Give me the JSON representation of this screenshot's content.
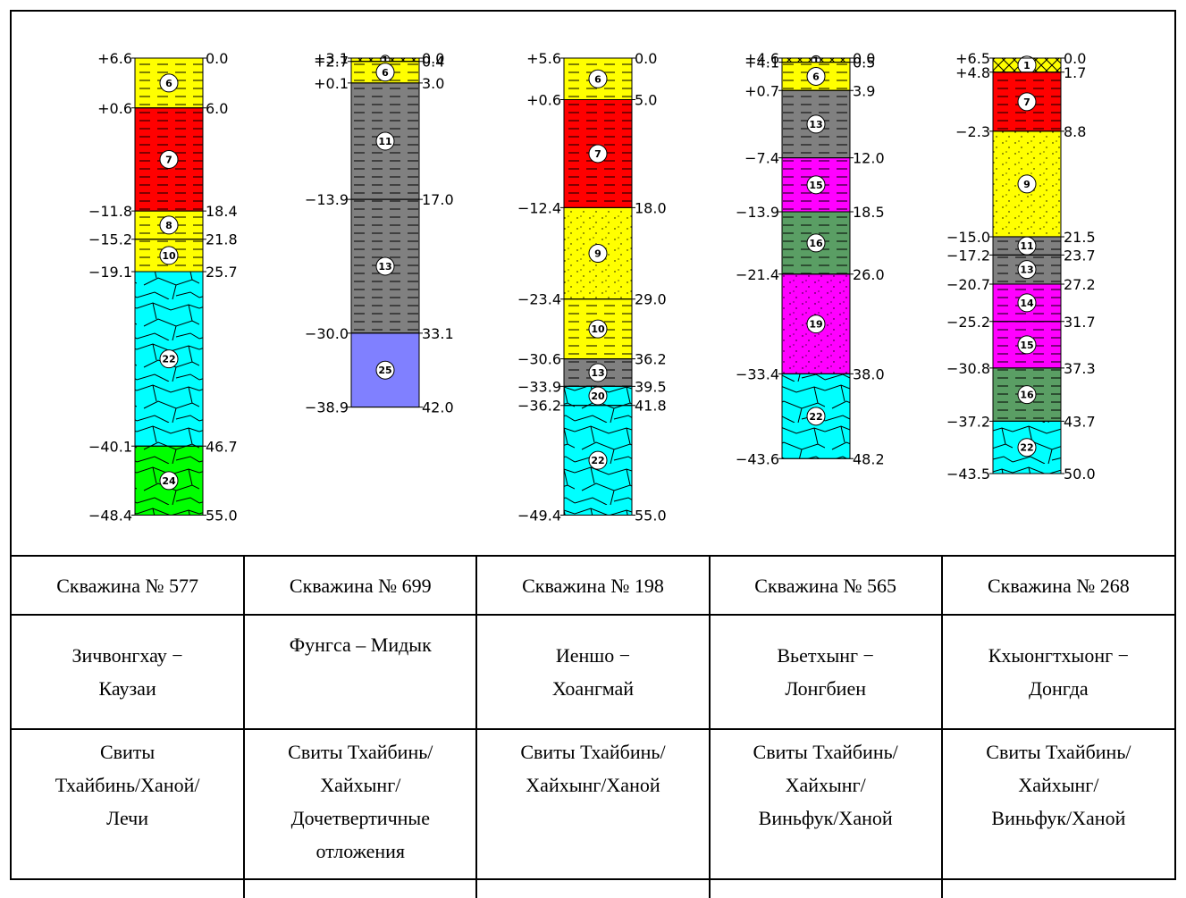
{
  "pattern_colors": {
    "1": "#ffff00",
    "6": "#ffff00",
    "7": "#ff0000",
    "8": "#ffff00",
    "9": "#ffff00",
    "10": "#ffff00",
    "11": "#808080",
    "13": "#808080",
    "14": "#ff00ff",
    "15": "#ff00ff",
    "16": "#5a9e64",
    "19": "#ff00ff",
    "20": "#00ffff",
    "22": "#00ffff",
    "24": "#00ff00",
    "25": "#8080ff"
  },
  "wells": [
    {
      "layers": [
        {
          "code": "6",
          "top": "0.0",
          "bottom": "6.0",
          "elev_top": "+6.6",
          "elev_bottom": "+0.6"
        },
        {
          "code": "7",
          "top": "6.0",
          "bottom": "18.4",
          "elev_top": "+0.6",
          "elev_bottom": "−11.8"
        },
        {
          "code": "8",
          "top": "18.4",
          "bottom": "21.8",
          "elev_top": "−11.8",
          "elev_bottom": "−15.2"
        },
        {
          "code": "10",
          "top": "21.8",
          "bottom": "25.7",
          "elev_top": "−15.2",
          "elev_bottom": "−19.1"
        },
        {
          "code": "22",
          "top": "25.7",
          "bottom": "46.7",
          "elev_top": "−19.1",
          "elev_bottom": "−40.1"
        },
        {
          "code": "24",
          "top": "46.7",
          "bottom": "55.0",
          "elev_top": "−40.1",
          "elev_bottom": "−48.4"
        }
      ],
      "labels": [
        {
          "d": "0.0",
          "e": "+6.6"
        },
        {
          "d": "6.0",
          "e": "+0.6"
        },
        {
          "d": "18.4",
          "e": "−11.8"
        },
        {
          "d": "21.8",
          "e": "−15.2"
        },
        {
          "d": "25.7",
          "e": "−19.1"
        },
        {
          "d": "46.7",
          "e": "−40.1"
        },
        {
          "d": "55.0",
          "e": "−48.4"
        }
      ]
    },
    {
      "layers": [
        {
          "code": "1",
          "top": "0.0",
          "bottom": "0.4"
        },
        {
          "code": "6",
          "top": "0.4",
          "bottom": "3.0"
        },
        {
          "code": "11",
          "top": "3.0",
          "bottom": "17.0"
        },
        {
          "code": "13",
          "top": "17.0",
          "bottom": "33.1"
        },
        {
          "code": "25",
          "top": "33.1",
          "bottom": "42.0"
        }
      ],
      "labels": [
        {
          "d": "0.0",
          "e": "+3.1"
        },
        {
          "d": "0.4",
          "e": "+2.7"
        },
        {
          "d": "3.0",
          "e": "+0.1"
        },
        {
          "d": "17.0",
          "e": "−13.9"
        },
        {
          "d": "33.1",
          "e": "−30.0"
        },
        {
          "d": "42.0",
          "e": "−38.9"
        }
      ]
    },
    {
      "layers": [
        {
          "code": "6",
          "top": "0.0",
          "bottom": "5.0"
        },
        {
          "code": "7",
          "top": "5.0",
          "bottom": "18.0"
        },
        {
          "code": "9",
          "top": "18.0",
          "bottom": "29.0"
        },
        {
          "code": "10",
          "top": "29.0",
          "bottom": "36.2"
        },
        {
          "code": "13",
          "top": "36.2",
          "bottom": "39.5"
        },
        {
          "code": "20",
          "top": "39.5",
          "bottom": "41.8"
        },
        {
          "code": "22",
          "top": "41.8",
          "bottom": "55.0"
        }
      ],
      "labels": [
        {
          "d": "0.0",
          "e": "+5.6"
        },
        {
          "d": "5.0",
          "e": "+0.6"
        },
        {
          "d": "18.0",
          "e": "−12.4"
        },
        {
          "d": "29.0",
          "e": "−23.4"
        },
        {
          "d": "36.2",
          "e": "−30.6"
        },
        {
          "d": "39.5",
          "e": "−33.9"
        },
        {
          "d": "41.8",
          "e": "−36.2"
        },
        {
          "d": "55.0",
          "e": "−49.4"
        }
      ]
    },
    {
      "layers": [
        {
          "code": "1",
          "top": "0.0",
          "bottom": "0.5"
        },
        {
          "code": "6",
          "top": "0.5",
          "bottom": "3.9"
        },
        {
          "code": "13",
          "top": "3.9",
          "bottom": "12.0"
        },
        {
          "code": "15",
          "top": "12.0",
          "bottom": "18.5"
        },
        {
          "code": "16",
          "top": "18.5",
          "bottom": "26.0"
        },
        {
          "code": "19",
          "top": "26.0",
          "bottom": "38.0"
        },
        {
          "code": "22",
          "top": "38.0",
          "bottom": "48.2"
        }
      ],
      "labels": [
        {
          "d": "0.0",
          "e": "+4.6"
        },
        {
          "d": "0.5",
          "e": "+4.1"
        },
        {
          "d": "3.9",
          "e": "+0.7"
        },
        {
          "d": "12.0",
          "e": "−7.4"
        },
        {
          "d": "18.5",
          "e": "−13.9"
        },
        {
          "d": "26.0",
          "e": "−21.4"
        },
        {
          "d": "38.0",
          "e": "−33.4"
        },
        {
          "d": "48.2",
          "e": "−43.6"
        }
      ]
    },
    {
      "layers": [
        {
          "code": "1",
          "top": "0.0",
          "bottom": "1.7"
        },
        {
          "code": "7",
          "top": "1.7",
          "bottom": "8.8"
        },
        {
          "code": "9",
          "top": "8.8",
          "bottom": "21.5"
        },
        {
          "code": "11",
          "top": "21.5",
          "bottom": "23.7"
        },
        {
          "code": "13",
          "top": "23.7",
          "bottom": "27.2"
        },
        {
          "code": "14",
          "top": "27.2",
          "bottom": "31.7"
        },
        {
          "code": "15",
          "top": "31.7",
          "bottom": "37.3"
        },
        {
          "code": "16",
          "top": "37.3",
          "bottom": "43.7"
        },
        {
          "code": "22",
          "top": "43.7",
          "bottom": "50.0"
        }
      ],
      "labels": [
        {
          "d": "0.0",
          "e": "+6.5"
        },
        {
          "d": "1.7",
          "e": "+4.8"
        },
        {
          "d": "8.8",
          "e": "−2.3"
        },
        {
          "d": "21.5",
          "e": "−15.0"
        },
        {
          "d": "23.7",
          "e": "−17.2"
        },
        {
          "d": "27.2",
          "e": "−20.7"
        },
        {
          "d": "31.7",
          "e": "−25.2"
        },
        {
          "d": "37.3",
          "e": "−30.8"
        },
        {
          "d": "43.7",
          "e": "−37.2"
        },
        {
          "d": "50.0",
          "e": "−43.5"
        }
      ]
    }
  ],
  "table": {
    "names": [
      "Скважина № 577",
      "Скважина № 699",
      "Скважина № 198",
      "Скважина № 565",
      "Скважина № 268"
    ],
    "locations": [
      [
        "Зичвонгхау −",
        "Каузаи"
      ],
      [
        "Фунгса – Мидык"
      ],
      [
        "Иеншо −",
        "Хоангмай"
      ],
      [
        "Вьетхынг −",
        "Лонгбиен"
      ],
      [
        "Кхыонгтхыонг −",
        "Донгда"
      ]
    ],
    "formations": [
      [
        "Свиты",
        "Тхайбинь/Ханой/",
        "Лечи"
      ],
      [
        "Свиты Тхайбинь/",
        "Хайхынг/",
        "Дочетвертичные",
        "отложения"
      ],
      [
        "Свиты Тхайбинь/",
        "Хайхынг/Ханой"
      ],
      [
        "Свиты Тхайбинь/",
        "Хайхынг/",
        "Виньфук/Ханой"
      ],
      [
        "Свиты Тхайбинь/",
        "Хайхынг/",
        "Виньфук/Ханой"
      ]
    ]
  }
}
